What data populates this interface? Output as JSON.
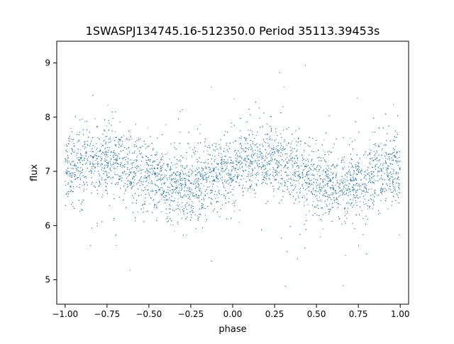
{
  "chart_data": {
    "type": "scatter",
    "title": "1SWASPJ134745.16-512350.0 Period 35113.39453s",
    "xlabel": "phase",
    "ylabel": "flux",
    "xlim": [
      -1.05,
      1.05
    ],
    "ylim": [
      4.55,
      9.4
    ],
    "x_ticks": [
      -1.0,
      -0.75,
      -0.5,
      -0.25,
      0.0,
      0.25,
      0.5,
      0.75,
      1.0
    ],
    "x_tick_labels": [
      "−1.00",
      "−0.75",
      "−0.50",
      "−0.25",
      "0.00",
      "0.25",
      "0.50",
      "0.75",
      "1.00"
    ],
    "y_ticks": [
      5,
      6,
      7,
      8,
      9
    ],
    "y_tick_labels": [
      "5",
      "6",
      "7",
      "8",
      "9"
    ],
    "grid": false,
    "legend": "none",
    "marker_color": "#1f77b4",
    "series": [
      {
        "x": [
          -1.0,
          -0.95,
          -0.9,
          -0.85,
          -0.8,
          -0.75,
          -0.7,
          -0.65,
          -0.6,
          -0.55,
          -0.5,
          -0.45,
          -0.4,
          -0.35,
          -0.3,
          -0.25,
          -0.2,
          -0.15,
          -0.1,
          -0.05,
          0.0,
          0.05,
          0.1,
          0.15,
          0.2,
          0.25,
          0.3,
          0.35,
          0.4,
          0.45,
          0.5,
          0.55,
          0.6,
          0.65,
          0.7,
          0.75,
          0.8,
          0.85,
          0.9,
          0.95,
          1.0
        ],
        "y": [
          7.0,
          7.05,
          7.1,
          7.15,
          7.2,
          7.22,
          7.2,
          7.15,
          7.08,
          7.0,
          6.92,
          6.85,
          6.78,
          6.72,
          6.7,
          6.72,
          6.78,
          6.85,
          6.92,
          7.0,
          7.05,
          7.1,
          7.15,
          7.2,
          7.22,
          7.2,
          7.15,
          7.08,
          7.0,
          6.92,
          6.85,
          6.78,
          6.72,
          6.7,
          6.72,
          6.78,
          6.85,
          6.92,
          7.0,
          7.0,
          7.0
        ],
        "scatter_sigma": 0.32,
        "num_points": 9000
      }
    ]
  }
}
